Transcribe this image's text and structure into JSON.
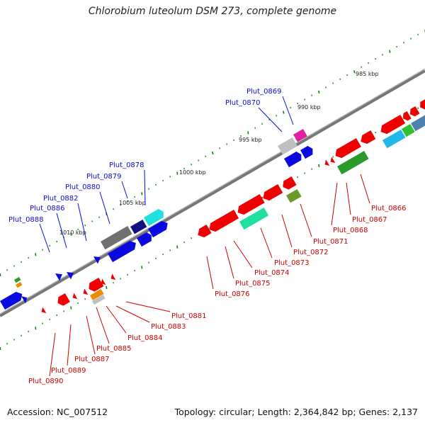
{
  "header": {
    "title": "Chlorobium luteolum DSM 273, complete genome"
  },
  "footer": {
    "accession": "Accession: NC_007512",
    "summary": "Topology: circular; Length: 2,364,842 bp; Genes: 2,137"
  },
  "colors": {
    "forward_label": "#0b0bd9",
    "reverse_label": "#d00000",
    "backbone": "#808080",
    "tick": "#0a8a0a"
  },
  "scale_labels": [
    "985 kbp",
    "990 kbp",
    "995 kbp",
    "1000 kbp",
    "1005 kbp",
    "1010 kbp"
  ],
  "forward_gene_labels": [
    "Plut_0869",
    "Plut_0870",
    "Plut_0878",
    "Plut_0879",
    "Plut_0880",
    "Plut_0882",
    "Plut_0886",
    "Plut_0888"
  ],
  "reverse_gene_labels": [
    "Plut_0866",
    "Plut_0867",
    "Plut_0868",
    "Plut_0871",
    "Plut_0872",
    "Plut_0873",
    "Plut_0874",
    "Plut_0875",
    "Plut_0876",
    "Plut_0881",
    "Plut_0883",
    "Plut_0884",
    "Plut_0885",
    "Plut_0887",
    "Plut_0889",
    "Plut_0890"
  ]
}
